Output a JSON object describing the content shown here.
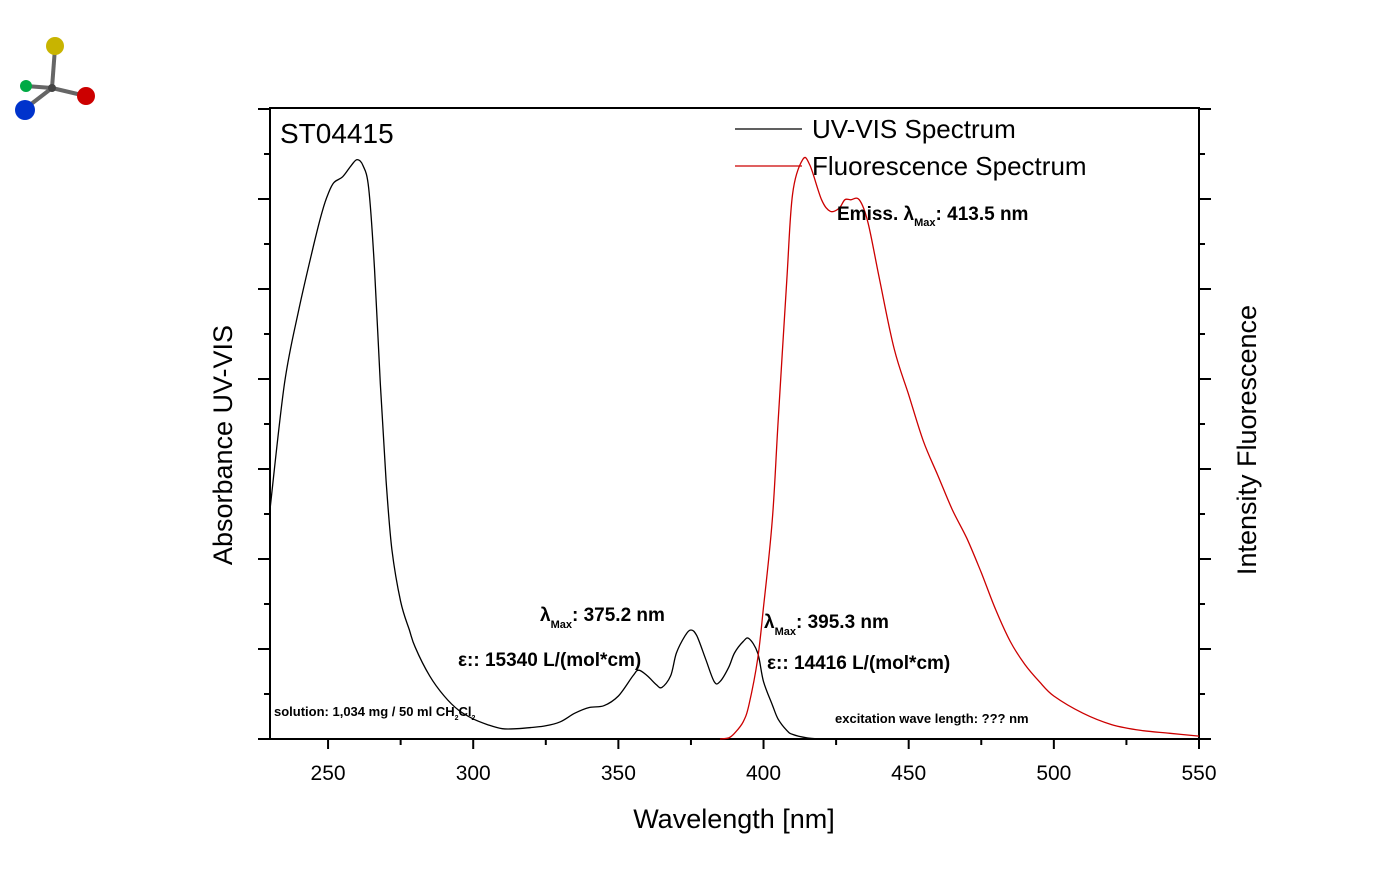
{
  "chart_data": {
    "type": "line",
    "title": "ST04415",
    "xlabel": "Wavelength [nm]",
    "ylabel_left": "Absorbance UV-VIS",
    "ylabel_right": "Intensity Fluorescence",
    "xlim": [
      230,
      550
    ],
    "ylim": [
      0,
      1.1
    ],
    "x_ticks": [
      250,
      300,
      350,
      400,
      450,
      500,
      550
    ],
    "x_tick_labels": [
      "250",
      "300",
      "350",
      "400",
      "450",
      "500",
      "550"
    ],
    "y_tick_labels_shown": false,
    "grid": false,
    "legend_position": "top-right",
    "series": [
      {
        "name": "UV-VIS Spectrum",
        "color": "#000000",
        "x": [
          230,
          235,
          240,
          245,
          248,
          250,
          252,
          255,
          258,
          260,
          262,
          264,
          266,
          268,
          270,
          272,
          275,
          278,
          280,
          285,
          290,
          295,
          300,
          305,
          310,
          315,
          320,
          325,
          330,
          335,
          340,
          345,
          350,
          355,
          357,
          360,
          363,
          365,
          368,
          370,
          373,
          375,
          377,
          380,
          383,
          385,
          388,
          390,
          393,
          395,
          398,
          400,
          403,
          405,
          408,
          410,
          415,
          420
        ],
        "y": [
          0.4,
          0.62,
          0.75,
          0.86,
          0.92,
          0.95,
          0.97,
          0.98,
          1.0,
          1.01,
          1.0,
          0.96,
          0.82,
          0.62,
          0.45,
          0.33,
          0.24,
          0.19,
          0.16,
          0.11,
          0.075,
          0.05,
          0.035,
          0.025,
          0.018,
          0.018,
          0.02,
          0.023,
          0.03,
          0.045,
          0.055,
          0.058,
          0.075,
          0.11,
          0.12,
          0.11,
          0.095,
          0.09,
          0.11,
          0.15,
          0.18,
          0.19,
          0.18,
          0.14,
          0.1,
          0.1,
          0.125,
          0.15,
          0.17,
          0.175,
          0.15,
          0.1,
          0.06,
          0.035,
          0.015,
          0.008,
          0.002,
          0.0
        ]
      },
      {
        "name": "Fluorescence Spectrum",
        "color": "#cc0000",
        "x": [
          385,
          388,
          390,
          393,
          395,
          398,
          400,
          403,
          405,
          408,
          410,
          413.5,
          416,
          420,
          423,
          426,
          428,
          430,
          433,
          436,
          440,
          445,
          450,
          455,
          460,
          465,
          470,
          475,
          480,
          485,
          490,
          495,
          500,
          510,
          520,
          530,
          540,
          550
        ],
        "y": [
          0.0,
          0.002,
          0.01,
          0.03,
          0.06,
          0.14,
          0.23,
          0.38,
          0.55,
          0.8,
          0.95,
          1.01,
          1.0,
          0.94,
          0.92,
          0.925,
          0.94,
          0.94,
          0.94,
          0.9,
          0.8,
          0.68,
          0.6,
          0.52,
          0.46,
          0.4,
          0.35,
          0.29,
          0.225,
          0.17,
          0.13,
          0.1,
          0.075,
          0.045,
          0.025,
          0.015,
          0.01,
          0.005
        ]
      }
    ],
    "annotations": [
      {
        "text": "Emiss. λ",
        "sub": "Max",
        "tail": ": 413.5 nm"
      },
      {
        "text": "λ",
        "sub": "Max",
        "tail": ": 375.2 nm"
      },
      {
        "text": "ε:: 15340 L/(mol*cm)"
      },
      {
        "text": "λ",
        "sub": "Max",
        "tail": ": 395.3 nm"
      },
      {
        "text": "ε:: 14416 L/(mol*cm)"
      },
      {
        "text": "solution: 1,034 mg / 50 ml CH",
        "sub": "2",
        "tail": "Cl",
        "sub2": "2"
      },
      {
        "text": "excitation wave length: ???  nm"
      }
    ]
  },
  "logo": {
    "colors": [
      "#c8b400",
      "#cc0000",
      "#00aa44",
      "#0033cc",
      "#444444"
    ]
  }
}
